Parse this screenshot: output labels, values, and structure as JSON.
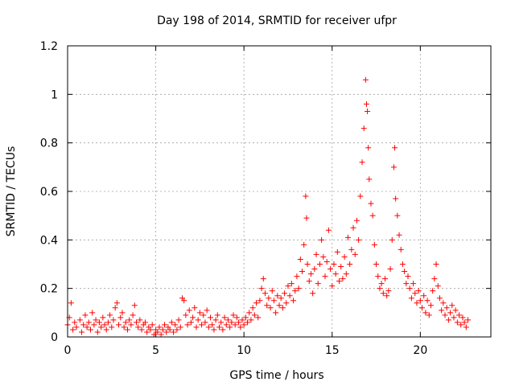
{
  "chart_data": {
    "type": "scatter",
    "title": "Day 198 of 2014, SRMTID for receiver ufpr",
    "xlabel": "GPS time / hours",
    "ylabel": "SRMTID / TECUs",
    "xlim": [
      0,
      24
    ],
    "ylim": [
      0,
      1.2
    ],
    "xticks": [
      0,
      5,
      10,
      15,
      20
    ],
    "xtick_labels": [
      "0",
      "5",
      "10",
      "15",
      "20"
    ],
    "yticks": [
      0,
      0.2,
      0.4,
      0.6,
      0.8,
      1.0,
      1.2
    ],
    "ytick_labels": [
      "0",
      "0.2",
      "0.4",
      "0.6",
      "0.8",
      "1",
      "1.2"
    ],
    "grid": true,
    "marker": "+",
    "color": "#ff0000",
    "series": [
      {
        "name": "SRMTID",
        "points": [
          [
            0.0,
            0.05
          ],
          [
            0.1,
            0.08
          ],
          [
            0.2,
            0.14
          ],
          [
            0.3,
            0.03
          ],
          [
            0.4,
            0.06
          ],
          [
            0.5,
            0.04
          ],
          [
            0.7,
            0.07
          ],
          [
            0.8,
            0.02
          ],
          [
            0.9,
            0.05
          ],
          [
            1.0,
            0.09
          ],
          [
            1.1,
            0.04
          ],
          [
            1.2,
            0.06
          ],
          [
            1.3,
            0.03
          ],
          [
            1.4,
            0.1
          ],
          [
            1.5,
            0.05
          ],
          [
            1.6,
            0.07
          ],
          [
            1.7,
            0.02
          ],
          [
            1.8,
            0.06
          ],
          [
            1.9,
            0.04
          ],
          [
            2.0,
            0.08
          ],
          [
            2.1,
            0.05
          ],
          [
            2.2,
            0.03
          ],
          [
            2.3,
            0.06
          ],
          [
            2.4,
            0.09
          ],
          [
            2.5,
            0.04
          ],
          [
            2.6,
            0.07
          ],
          [
            2.7,
            0.12
          ],
          [
            2.8,
            0.14
          ],
          [
            2.9,
            0.05
          ],
          [
            3.0,
            0.08
          ],
          [
            3.1,
            0.1
          ],
          [
            3.2,
            0.04
          ],
          [
            3.3,
            0.06
          ],
          [
            3.4,
            0.03
          ],
          [
            3.5,
            0.07
          ],
          [
            3.6,
            0.05
          ],
          [
            3.7,
            0.09
          ],
          [
            3.8,
            0.13
          ],
          [
            3.9,
            0.06
          ],
          [
            4.0,
            0.04
          ],
          [
            4.1,
            0.07
          ],
          [
            4.2,
            0.03
          ],
          [
            4.3,
            0.05
          ],
          [
            4.4,
            0.06
          ],
          [
            4.5,
            0.02
          ],
          [
            4.6,
            0.04
          ],
          [
            4.7,
            0.03
          ],
          [
            4.8,
            0.05
          ],
          [
            4.9,
            0.01
          ],
          [
            5.0,
            0.03
          ],
          [
            5.1,
            0.02
          ],
          [
            5.2,
            0.04
          ],
          [
            5.3,
            0.01
          ],
          [
            5.4,
            0.03
          ],
          [
            5.5,
            0.05
          ],
          [
            5.6,
            0.02
          ],
          [
            5.7,
            0.04
          ],
          [
            5.8,
            0.03
          ],
          [
            5.9,
            0.06
          ],
          [
            6.0,
            0.02
          ],
          [
            6.1,
            0.05
          ],
          [
            6.2,
            0.03
          ],
          [
            6.3,
            0.07
          ],
          [
            6.4,
            0.04
          ],
          [
            6.5,
            0.16
          ],
          [
            6.6,
            0.15
          ],
          [
            6.7,
            0.09
          ],
          [
            6.8,
            0.05
          ],
          [
            6.9,
            0.11
          ],
          [
            7.0,
            0.06
          ],
          [
            7.1,
            0.08
          ],
          [
            7.2,
            0.12
          ],
          [
            7.3,
            0.04
          ],
          [
            7.4,
            0.07
          ],
          [
            7.5,
            0.1
          ],
          [
            7.6,
            0.05
          ],
          [
            7.7,
            0.09
          ],
          [
            7.8,
            0.06
          ],
          [
            7.9,
            0.11
          ],
          [
            8.0,
            0.04
          ],
          [
            8.1,
            0.08
          ],
          [
            8.2,
            0.05
          ],
          [
            8.3,
            0.03
          ],
          [
            8.4,
            0.07
          ],
          [
            8.5,
            0.09
          ],
          [
            8.6,
            0.04
          ],
          [
            8.7,
            0.06
          ],
          [
            8.8,
            0.03
          ],
          [
            8.9,
            0.08
          ],
          [
            9.0,
            0.05
          ],
          [
            9.1,
            0.07
          ],
          [
            9.2,
            0.04
          ],
          [
            9.3,
            0.06
          ],
          [
            9.4,
            0.09
          ],
          [
            9.5,
            0.05
          ],
          [
            9.6,
            0.08
          ],
          [
            9.7,
            0.06
          ],
          [
            9.8,
            0.04
          ],
          [
            9.9,
            0.07
          ],
          [
            10.0,
            0.05
          ],
          [
            10.1,
            0.08
          ],
          [
            10.2,
            0.06
          ],
          [
            10.3,
            0.1
          ],
          [
            10.4,
            0.07
          ],
          [
            10.5,
            0.12
          ],
          [
            10.6,
            0.09
          ],
          [
            10.7,
            0.14
          ],
          [
            10.8,
            0.08
          ],
          [
            10.9,
            0.15
          ],
          [
            11.0,
            0.2
          ],
          [
            11.1,
            0.24
          ],
          [
            11.2,
            0.18
          ],
          [
            11.3,
            0.13
          ],
          [
            11.4,
            0.16
          ],
          [
            11.5,
            0.12
          ],
          [
            11.6,
            0.19
          ],
          [
            11.7,
            0.15
          ],
          [
            11.8,
            0.1
          ],
          [
            11.9,
            0.17
          ],
          [
            12.0,
            0.13
          ],
          [
            12.1,
            0.16
          ],
          [
            12.2,
            0.12
          ],
          [
            12.3,
            0.18
          ],
          [
            12.4,
            0.14
          ],
          [
            12.5,
            0.21
          ],
          [
            12.6,
            0.17
          ],
          [
            12.7,
            0.22
          ],
          [
            12.8,
            0.15
          ],
          [
            12.9,
            0.19
          ],
          [
            13.0,
            0.25
          ],
          [
            13.1,
            0.2
          ],
          [
            13.2,
            0.32
          ],
          [
            13.3,
            0.27
          ],
          [
            13.4,
            0.38
          ],
          [
            13.5,
            0.58
          ],
          [
            13.55,
            0.49
          ],
          [
            13.6,
            0.3
          ],
          [
            13.7,
            0.23
          ],
          [
            13.8,
            0.26
          ],
          [
            13.9,
            0.18
          ],
          [
            14.0,
            0.28
          ],
          [
            14.1,
            0.34
          ],
          [
            14.2,
            0.22
          ],
          [
            14.3,
            0.3
          ],
          [
            14.4,
            0.4
          ],
          [
            14.5,
            0.33
          ],
          [
            14.6,
            0.25
          ],
          [
            14.7,
            0.31
          ],
          [
            14.8,
            0.44
          ],
          [
            14.9,
            0.28
          ],
          [
            15.0,
            0.21
          ],
          [
            15.1,
            0.3
          ],
          [
            15.2,
            0.26
          ],
          [
            15.3,
            0.35
          ],
          [
            15.4,
            0.23
          ],
          [
            15.5,
            0.29
          ],
          [
            15.6,
            0.24
          ],
          [
            15.7,
            0.33
          ],
          [
            15.8,
            0.26
          ],
          [
            15.9,
            0.41
          ],
          [
            16.0,
            0.3
          ],
          [
            16.1,
            0.36
          ],
          [
            16.2,
            0.45
          ],
          [
            16.3,
            0.34
          ],
          [
            16.4,
            0.48
          ],
          [
            16.5,
            0.4
          ],
          [
            16.6,
            0.58
          ],
          [
            16.7,
            0.72
          ],
          [
            16.8,
            0.86
          ],
          [
            16.9,
            1.06
          ],
          [
            16.95,
            0.96
          ],
          [
            17.0,
            0.93
          ],
          [
            17.05,
            0.78
          ],
          [
            17.1,
            0.65
          ],
          [
            17.2,
            0.55
          ],
          [
            17.3,
            0.5
          ],
          [
            17.4,
            0.38
          ],
          [
            17.5,
            0.3
          ],
          [
            17.6,
            0.25
          ],
          [
            17.7,
            0.2
          ],
          [
            17.8,
            0.22
          ],
          [
            17.9,
            0.18
          ],
          [
            18.0,
            0.24
          ],
          [
            18.1,
            0.17
          ],
          [
            18.2,
            0.19
          ],
          [
            18.3,
            0.28
          ],
          [
            18.4,
            0.4
          ],
          [
            18.5,
            0.7
          ],
          [
            18.55,
            0.78
          ],
          [
            18.6,
            0.57
          ],
          [
            18.7,
            0.5
          ],
          [
            18.8,
            0.42
          ],
          [
            18.9,
            0.36
          ],
          [
            19.0,
            0.3
          ],
          [
            19.1,
            0.27
          ],
          [
            19.2,
            0.22
          ],
          [
            19.3,
            0.25
          ],
          [
            19.4,
            0.2
          ],
          [
            19.5,
            0.16
          ],
          [
            19.6,
            0.22
          ],
          [
            19.7,
            0.18
          ],
          [
            19.8,
            0.14
          ],
          [
            19.9,
            0.19
          ],
          [
            20.0,
            0.15
          ],
          [
            20.1,
            0.12
          ],
          [
            20.2,
            0.17
          ],
          [
            20.3,
            0.1
          ],
          [
            20.4,
            0.15
          ],
          [
            20.5,
            0.09
          ],
          [
            20.6,
            0.13
          ],
          [
            20.7,
            0.19
          ],
          [
            20.8,
            0.24
          ],
          [
            20.9,
            0.3
          ],
          [
            21.0,
            0.21
          ],
          [
            21.1,
            0.16
          ],
          [
            21.2,
            0.11
          ],
          [
            21.3,
            0.14
          ],
          [
            21.4,
            0.09
          ],
          [
            21.5,
            0.12
          ],
          [
            21.6,
            0.07
          ],
          [
            21.7,
            0.1
          ],
          [
            21.8,
            0.13
          ],
          [
            21.9,
            0.08
          ],
          [
            22.0,
            0.11
          ],
          [
            22.1,
            0.06
          ],
          [
            22.2,
            0.09
          ],
          [
            22.3,
            0.05
          ],
          [
            22.4,
            0.08
          ],
          [
            22.5,
            0.06
          ],
          [
            22.6,
            0.04
          ],
          [
            22.7,
            0.07
          ]
        ]
      }
    ]
  }
}
